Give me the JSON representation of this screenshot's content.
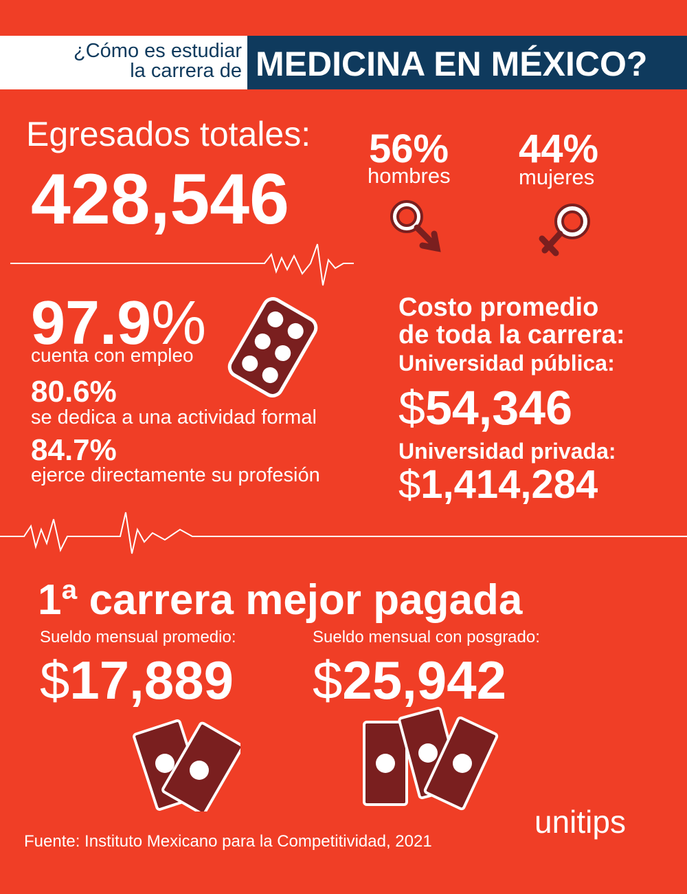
{
  "header": {
    "question": [
      "¿Cómo es estudiar",
      "la carrera de"
    ],
    "title": "MEDICINA EN MÉXICO?"
  },
  "graduates": {
    "label": "Egresados totales:",
    "value": "428,546"
  },
  "gender": [
    {
      "percent": "56%",
      "label": "hombres"
    },
    {
      "percent": "44%",
      "label": "mujeres"
    }
  ],
  "employment": {
    "main": {
      "number": "97.9",
      "unit": "%",
      "label": "cuenta con empleo"
    },
    "items": [
      {
        "percent": "80.6%",
        "label": "se dedica a una actividad formal"
      },
      {
        "percent": "84.7%",
        "label": "ejerce directamente su profesión"
      }
    ]
  },
  "cost": {
    "title": [
      "Costo promedio",
      "de toda la carrera:"
    ],
    "public": {
      "label": "Universidad pública:",
      "symbol": "$",
      "amount": "54,346"
    },
    "private": {
      "label": "Universidad privada:",
      "symbol": "$",
      "amount": "1,414,284"
    }
  },
  "ranking": {
    "title": "1ª carrera mejor pagada",
    "salaries": [
      {
        "label": "Sueldo mensual promedio:",
        "symbol": "$",
        "amount": "17,889"
      },
      {
        "label": "Sueldo mensual con posgrado:",
        "symbol": "$",
        "amount": "25,942"
      }
    ]
  },
  "source": "Fuente: Instituto Mexicano para la Competitividad, 2021",
  "logo": "unitips"
}
